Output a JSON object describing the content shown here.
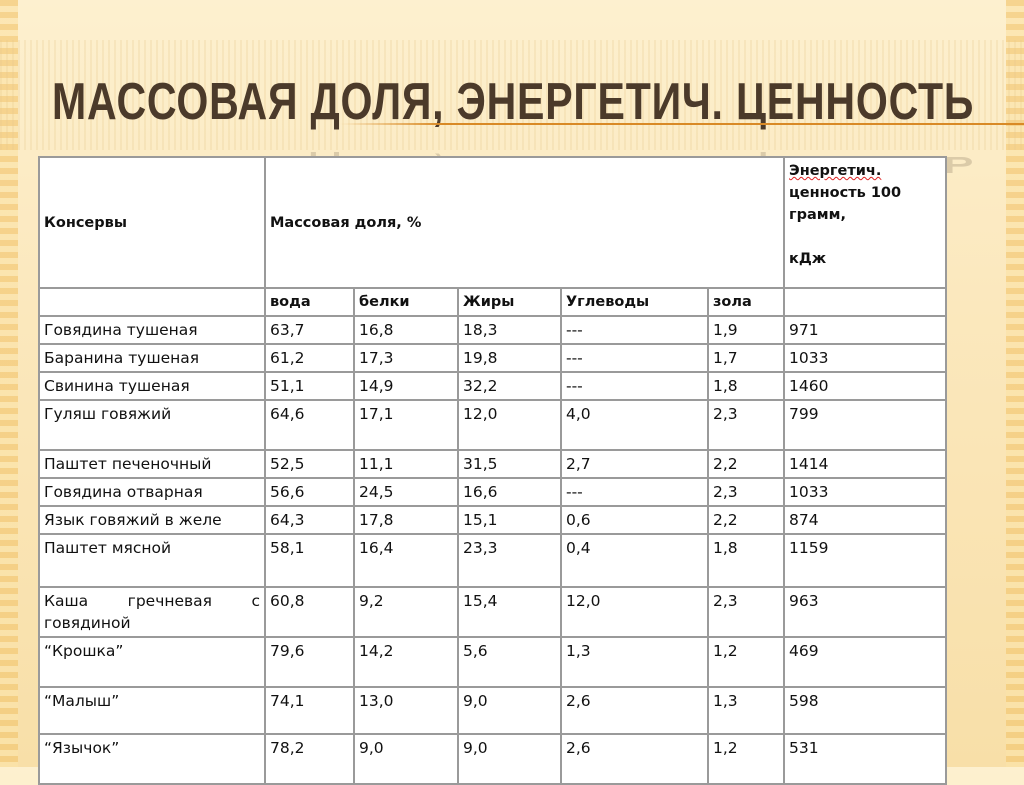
{
  "slide": {
    "title": "МАССОВАЯ ДОЛЯ, ЭНЕРГЕТИЧ. ЦЕННОСТЬ"
  },
  "table": {
    "header": {
      "product": "Консервы",
      "mass_fraction": "Массовая доля, %",
      "energy_line1": "Энергетич.",
      "energy_line2": "ценность   100 грамм,",
      "energy_unit": "кДж"
    },
    "subheaders": [
      "вода",
      "белки",
      "Жиры",
      "Углеводы",
      "зола",
      ""
    ],
    "rows": [
      {
        "name": "Говядина тушеная",
        "values": [
          "63,7",
          "16,8",
          "18,3",
          "---",
          "1,9",
          "971"
        ]
      },
      {
        "name": "Баранина тушеная",
        "values": [
          "61,2",
          "17,3",
          "19,8",
          "---",
          "1,7",
          "1033"
        ]
      },
      {
        "name": "Свинина тушеная",
        "values": [
          "51,1",
          "14,9",
          "32,2",
          "---",
          "1,8",
          "1460"
        ]
      },
      {
        "name": "Гуляш говяжий",
        "values": [
          "64,6",
          "17,1",
          "12,0",
          "4,0",
          "2,3",
          "799"
        ]
      },
      {
        "name": "Паштет печеночный",
        "values": [
          "52,5",
          "11,1",
          "31,5",
          "2,7",
          "2,2",
          "1414"
        ]
      },
      {
        "name": "Говядина отварная",
        "values": [
          "56,6",
          "24,5",
          "16,6",
          "---",
          "2,3",
          "1033"
        ]
      },
      {
        "name": "Язык говяжий в желе",
        "values": [
          "64,3",
          "17,8",
          "15,1",
          "0,6",
          "2,2",
          "874"
        ]
      },
      {
        "name": "Паштет мясной",
        "values": [
          "58,1",
          "16,4",
          "23,3",
          "0,4",
          "1,8",
          "1159"
        ]
      },
      {
        "name": "Каша гречневая с говядиной",
        "values": [
          "60,8",
          "9,2",
          "15,4",
          "12,0",
          "2,3",
          "963"
        ]
      },
      {
        "name": "“Крошка”",
        "values": [
          "79,6",
          "14,2",
          "5,6",
          "1,3",
          "1,2",
          "469"
        ]
      },
      {
        "name": "“Малыш”",
        "values": [
          "74,1",
          "13,0",
          "9,0",
          "2,6",
          "1,3",
          "598"
        ]
      },
      {
        "name": "“Язычок”",
        "values": [
          "78,2",
          "9,0",
          "9,0",
          "2,6",
          "1,2",
          "531"
        ]
      }
    ]
  },
  "colors": {
    "background": "#fbe8bd",
    "title": "#4b3a2a",
    "accent_rule": "#d98a26",
    "grid": "#9a9a9a"
  }
}
